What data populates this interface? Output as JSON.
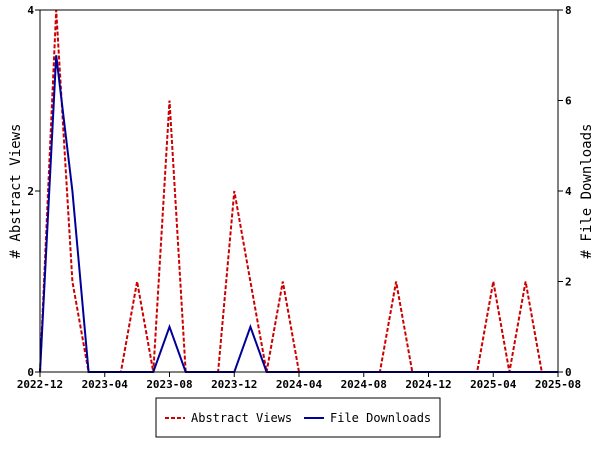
{
  "chart_data": {
    "type": "line",
    "x_tick_labels": [
      "2022-12",
      "2023-04",
      "2023-08",
      "2023-12",
      "2024-04",
      "2024-08",
      "2024-12",
      "2025-04",
      "2025-08"
    ],
    "x_range": [
      "2022-12",
      "2025-08"
    ],
    "y_left": {
      "label": "# Abstract Views",
      "range": [
        0,
        4
      ],
      "ticks": [
        "0",
        "2",
        "4"
      ]
    },
    "y_right": {
      "label": "# File Downloads",
      "range": [
        0,
        8
      ],
      "ticks": [
        "0",
        "2",
        "4",
        "6",
        "8"
      ]
    },
    "grid": false,
    "legend_position": "bottom",
    "series": [
      {
        "name": "Abstract Views",
        "axis": "left",
        "color": "#cc0000",
        "style": "dashed",
        "points": [
          [
            "2022-12-01",
            0
          ],
          [
            "2023-01-01",
            4
          ],
          [
            "2023-02-01",
            1
          ],
          [
            "2023-03-01",
            0
          ],
          [
            "2023-04-01",
            0
          ],
          [
            "2023-05-01",
            0
          ],
          [
            "2023-06-01",
            1
          ],
          [
            "2023-07-01",
            0
          ],
          [
            "2023-08-01",
            3
          ],
          [
            "2023-09-01",
            0
          ],
          [
            "2023-10-01",
            0
          ],
          [
            "2023-11-01",
            0
          ],
          [
            "2023-12-01",
            2
          ],
          [
            "2024-01-01",
            1
          ],
          [
            "2024-02-01",
            0
          ],
          [
            "2024-03-01",
            1
          ],
          [
            "2024-04-01",
            0
          ],
          [
            "2024-05-01",
            0
          ],
          [
            "2024-06-01",
            0
          ],
          [
            "2024-07-01",
            0
          ],
          [
            "2024-08-01",
            0
          ],
          [
            "2024-09-01",
            0
          ],
          [
            "2024-10-01",
            1
          ],
          [
            "2024-11-01",
            0
          ],
          [
            "2024-12-01",
            0
          ],
          [
            "2025-01-01",
            0
          ],
          [
            "2025-02-01",
            0
          ],
          [
            "2025-03-01",
            0
          ],
          [
            "2025-04-01",
            1
          ],
          [
            "2025-05-01",
            0
          ],
          [
            "2025-06-01",
            1
          ],
          [
            "2025-07-01",
            0
          ],
          [
            "2025-08-01",
            0
          ]
        ]
      },
      {
        "name": "File Downloads",
        "axis": "right",
        "color": "#000099",
        "style": "solid",
        "points": [
          [
            "2022-12-01",
            0
          ],
          [
            "2023-01-01",
            7
          ],
          [
            "2023-02-01",
            4
          ],
          [
            "2023-03-01",
            0
          ],
          [
            "2023-04-01",
            0
          ],
          [
            "2023-05-01",
            0
          ],
          [
            "2023-06-01",
            0
          ],
          [
            "2023-07-01",
            0
          ],
          [
            "2023-08-01",
            1
          ],
          [
            "2023-09-01",
            0
          ],
          [
            "2023-10-01",
            0
          ],
          [
            "2023-11-01",
            0
          ],
          [
            "2023-12-01",
            0
          ],
          [
            "2024-01-01",
            1
          ],
          [
            "2024-02-01",
            0
          ],
          [
            "2024-03-01",
            0
          ],
          [
            "2024-04-01",
            0
          ],
          [
            "2024-05-01",
            0
          ],
          [
            "2024-06-01",
            0
          ],
          [
            "2024-07-01",
            0
          ],
          [
            "2024-08-01",
            0
          ],
          [
            "2024-09-01",
            0
          ],
          [
            "2024-10-01",
            0
          ],
          [
            "2024-11-01",
            0
          ],
          [
            "2024-12-01",
            0
          ],
          [
            "2025-01-01",
            0
          ],
          [
            "2025-02-01",
            0
          ],
          [
            "2025-03-01",
            0
          ],
          [
            "2025-04-01",
            0
          ],
          [
            "2025-05-01",
            0
          ],
          [
            "2025-06-01",
            0
          ],
          [
            "2025-07-01",
            0
          ],
          [
            "2025-08-01",
            0
          ]
        ]
      }
    ]
  }
}
